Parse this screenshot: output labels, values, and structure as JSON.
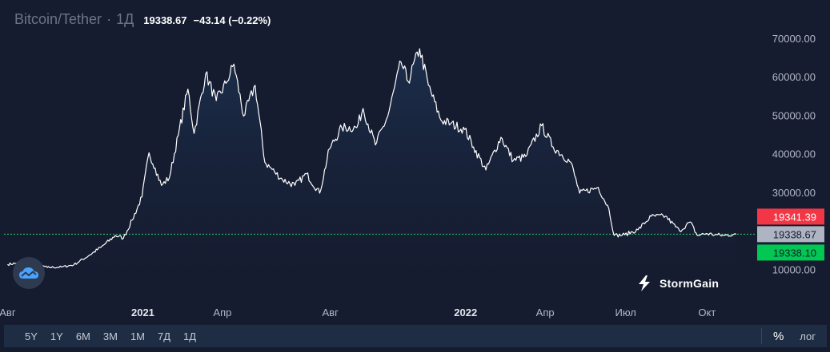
{
  "header": {
    "symbol": "Bitcoin/Tether",
    "separator": "·",
    "interval": "1Д",
    "last_price": "19338.67",
    "change": "−43.14 (−0.22%)"
  },
  "brand": {
    "name": "StormGain",
    "icon": "lightning-bolt-icon"
  },
  "toolbar": {
    "periods": [
      "5Y",
      "1Y",
      "6M",
      "3M",
      "1M",
      "7Д",
      "1Д"
    ],
    "percent_label": "%",
    "log_label": "лог"
  },
  "price_tags": {
    "ask": {
      "label": "19341.39",
      "value": 19341.39,
      "color": "#f23645"
    },
    "last": {
      "label": "19338.67",
      "value": 19338.67,
      "color": "#aeb4c2"
    },
    "bid": {
      "label": "19338.10",
      "value": 19338.1,
      "color": "#00c853"
    }
  },
  "chart_data": {
    "type": "line",
    "grid": false,
    "series": [
      {
        "x": [
          "2020-08-01",
          "2020-08-15",
          "2020-09-01",
          "2020-09-15",
          "2020-10-01",
          "2020-10-15",
          "2020-11-01",
          "2020-11-15",
          "2020-12-01",
          "2020-12-10",
          "2020-12-20",
          "2020-12-31",
          "2021-01-08",
          "2021-01-15",
          "2021-01-22",
          "2021-01-31",
          "2021-02-10",
          "2021-02-21",
          "2021-02-28",
          "2021-03-13",
          "2021-03-25",
          "2021-04-05",
          "2021-04-14",
          "2021-04-25",
          "2021-05-08",
          "2021-05-19",
          "2021-05-30",
          "2021-06-08",
          "2021-06-22",
          "2021-07-05",
          "2021-07-20",
          "2021-07-31",
          "2021-08-14",
          "2021-08-31",
          "2021-09-07",
          "2021-09-21",
          "2021-10-05",
          "2021-10-20",
          "2021-10-28",
          "2021-11-10",
          "2021-11-20",
          "2021-12-04",
          "2021-12-15",
          "2021-12-31",
          "2022-01-10",
          "2022-01-24",
          "2022-02-10",
          "2022-02-24",
          "2022-03-10",
          "2022-03-28",
          "2022-04-10",
          "2022-04-30",
          "2022-05-10",
          "2022-05-31",
          "2022-06-12",
          "2022-06-18",
          "2022-06-30",
          "2022-07-15",
          "2022-07-30",
          "2022-08-15",
          "2022-08-31",
          "2022-09-12",
          "2022-09-20",
          "2022-09-30",
          "2022-10-10",
          "2022-10-20",
          "2022-10-31",
          "2022-11-03"
        ],
        "y": [
          11500,
          11900,
          11700,
          10700,
          10800,
          11400,
          13800,
          16000,
          19000,
          18300,
          23000,
          29000,
          40500,
          36500,
          32000,
          34000,
          45000,
          57000,
          45500,
          61000,
          54000,
          58500,
          63500,
          50000,
          58000,
          38000,
          35500,
          33500,
          32000,
          35000,
          30000,
          41500,
          47000,
          47000,
          52000,
          42500,
          50000,
          64000,
          59000,
          67500,
          58000,
          49000,
          48000,
          46500,
          42000,
          36000,
          44500,
          38500,
          39500,
          47500,
          42000,
          38000,
          30000,
          31500,
          26000,
          19000,
          19200,
          20500,
          24000,
          24000,
          20200,
          22500,
          19000,
          19500,
          19200,
          19000,
          19300,
          19338.67
        ]
      }
    ],
    "x_ticks": [
      {
        "label": "Авг",
        "date": "2020-08-01",
        "bold": false
      },
      {
        "label": "2021",
        "date": "2021-01-01",
        "bold": true
      },
      {
        "label": "Апр",
        "date": "2021-04-01",
        "bold": false
      },
      {
        "label": "Авг",
        "date": "2021-08-01",
        "bold": false
      },
      {
        "label": "2022",
        "date": "2022-01-01",
        "bold": true
      },
      {
        "label": "Апр",
        "date": "2022-04-01",
        "bold": false
      },
      {
        "label": "Июл",
        "date": "2022-07-01",
        "bold": false
      },
      {
        "label": "Окт",
        "date": "2022-10-01",
        "bold": false
      }
    ],
    "y_ticks": [
      {
        "label": "10000.00",
        "value": 10000
      },
      {
        "label": "30000.00",
        "value": 30000
      },
      {
        "label": "40000.00",
        "value": 40000
      },
      {
        "label": "50000.00",
        "value": 50000
      },
      {
        "label": "60000.00",
        "value": 60000
      },
      {
        "label": "70000.00",
        "value": 70000
      }
    ],
    "xlim": [
      "2020-07-28",
      "2022-11-24"
    ],
    "ylim": [
      4500,
      76000
    ],
    "line_color": "#ffffff",
    "area_color": "#1b2a45",
    "last_value_line_color": "#2ecc71"
  }
}
